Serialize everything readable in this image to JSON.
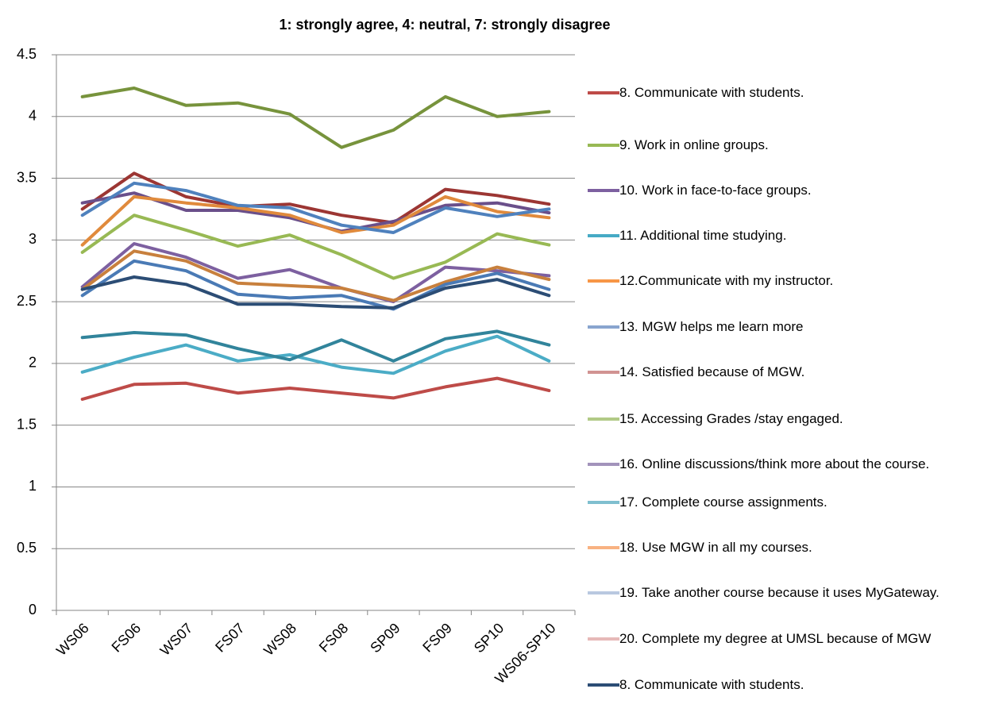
{
  "chart_data": {
    "type": "line",
    "title": "1: strongly agree, 4: neutral, 7: strongly disagree",
    "categories": [
      "WS06",
      "FS06",
      "WS07",
      "FS07",
      "WS08",
      "FS08",
      "SP09",
      "FS09",
      "SP10",
      "WS06-SP10"
    ],
    "ylim": [
      0,
      4.5
    ],
    "yticks": [
      0,
      0.5,
      1,
      1.5,
      2,
      2.5,
      3,
      3.5,
      4,
      4.5
    ],
    "grid": true,
    "legend": "right",
    "series": [
      {
        "name": "8. Communicate with students.",
        "color": "#be4b48",
        "legend_color": "#be4b48",
        "values": [
          1.71,
          1.83,
          1.84,
          1.76,
          1.8,
          1.76,
          1.72,
          1.81,
          1.88,
          1.78
        ]
      },
      {
        "name": "9. Work in online groups.",
        "color": "#98b954",
        "legend_color": "#98b954",
        "values": [
          2.9,
          3.2,
          3.08,
          2.95,
          3.04,
          2.88,
          2.69,
          2.82,
          3.05,
          2.96
        ]
      },
      {
        "name": "10. Work in face-to-face groups.",
        "color": "#7d60a0",
        "legend_color": "#7d60a0",
        "values": [
          2.62,
          2.97,
          2.86,
          2.69,
          2.76,
          2.61,
          2.5,
          2.78,
          2.75,
          2.71
        ]
      },
      {
        "name": "11. Additional time studying.",
        "color": "#4bacc6",
        "legend_color": "#46aac5",
        "values": [
          1.93,
          2.05,
          2.15,
          2.02,
          2.07,
          1.97,
          1.92,
          2.1,
          2.22,
          2.02
        ]
      },
      {
        "name": "12.Communicate with my instructor.",
        "color": "#c8803d",
        "legend_color": "#f79646",
        "values": [
          2.6,
          2.91,
          2.83,
          2.65,
          2.63,
          2.61,
          2.51,
          2.66,
          2.78,
          2.68
        ]
      },
      {
        "name": "13. MGW helps me learn more",
        "color": "#4a7ab5",
        "legend_color": "#89a5cf",
        "values": [
          2.55,
          2.83,
          2.75,
          2.56,
          2.53,
          2.55,
          2.44,
          2.64,
          2.73,
          2.6
        ]
      },
      {
        "name": "14. Satisfied because of MGW.",
        "color": "#9c3633",
        "legend_color": "#d19392",
        "values": [
          3.25,
          3.54,
          3.35,
          3.27,
          3.29,
          3.2,
          3.14,
          3.41,
          3.36,
          3.29
        ]
      },
      {
        "name": "15. Accessing Grades /stay engaged.",
        "color": "#77933c",
        "legend_color": "#b1ca86",
        "values": [
          4.16,
          4.23,
          4.09,
          4.11,
          4.02,
          3.75,
          3.89,
          4.16,
          4.0,
          4.04
        ]
      },
      {
        "name": "16. Online discussions/think more about the course.",
        "color": "#6a4f8a",
        "legend_color": "#a293bb",
        "values": [
          3.3,
          3.38,
          3.24,
          3.24,
          3.18,
          3.07,
          3.15,
          3.28,
          3.3,
          3.22
        ]
      },
      {
        "name": "17. Complete course assignments.",
        "color": "#31849b",
        "legend_color": "#7fbfcf",
        "values": [
          2.21,
          2.25,
          2.23,
          2.12,
          2.03,
          2.19,
          2.02,
          2.2,
          2.26,
          2.15
        ]
      },
      {
        "name": "18. Use MGW  in all my courses.",
        "color": "#e08a3c",
        "legend_color": "#f8b282",
        "values": [
          2.96,
          3.35,
          3.3,
          3.26,
          3.2,
          3.06,
          3.12,
          3.35,
          3.23,
          3.18
        ]
      },
      {
        "name": "19. Take another course because it uses MyGateway.",
        "color": "#4f81bd",
        "legend_color": "#b9c8e0",
        "values": [
          3.2,
          3.46,
          3.4,
          3.28,
          3.26,
          3.12,
          3.06,
          3.26,
          3.19,
          3.25
        ]
      },
      {
        "name": "20. Complete my degree at UMSL because of MGW",
        "color": "#e6b9b8",
        "legend_color": "#e6b9b8",
        "values": [
          null,
          null,
          null,
          null,
          null,
          null,
          null,
          null,
          null,
          null
        ]
      },
      {
        "name": "8. Communicate with students.",
        "color": "#2c4d75",
        "legend_color": "#2c4d75",
        "values": [
          2.6,
          2.7,
          2.64,
          2.48,
          2.48,
          2.46,
          2.45,
          2.61,
          2.68,
          2.55
        ]
      }
    ]
  }
}
